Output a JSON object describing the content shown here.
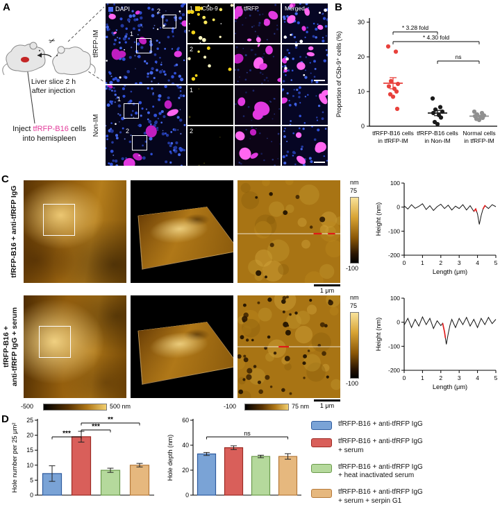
{
  "panels": {
    "a": "A",
    "b": "B",
    "c": "C",
    "d": "D"
  },
  "panel_a": {
    "cartoon": {
      "caption_line1": "Liver slice 2 h",
      "caption_line2": "after injection",
      "inject_prefix": "Inject ",
      "inject_highlight": "tfRFP-B16",
      "inject_mid": " cells",
      "inject_line2": "into hemispleen"
    },
    "microscopy": {
      "row_label_1": "tfRFP-IM",
      "row_label_2": "Non-IM",
      "dapi": "DAPI",
      "c5b9": "C5b-9",
      "tfrfp": "tfRFP",
      "merged": "Merged",
      "inset_1": "1",
      "inset_2": "2"
    }
  },
  "panel_c": {
    "row_label_1_lines": [
      "tfRFP-B16 + anti-tfRFP IgG"
    ],
    "row_label_2_lines": [
      "tfRFP-B16 +",
      "anti-tfRFP IgG + serum"
    ],
    "vbar_unit": "nm",
    "vbar_max": "75",
    "vbar_min": "-100",
    "scalebar_label": "1 μm",
    "hbar1_min": "-500",
    "hbar1_max": "500 nm",
    "hbar2_min": "-100",
    "hbar2_max": "75 nm"
  },
  "panel_d": {
    "legend": [
      {
        "lines": [
          "tfRFP-B16 + anti-tfRFP IgG"
        ],
        "fill": "#7AA3D6",
        "stroke": "#2E5B9E"
      },
      {
        "lines": [
          "tfRFP-B16 + anti-tfRFP IgG",
          "+ serum"
        ],
        "fill": "#D95F5A",
        "stroke": "#9C2A23"
      },
      {
        "lines": [
          "tfRFP-B16 + anti-tfRFP IgG",
          "+ heat inactivated serum"
        ],
        "fill": "#B5D99C",
        "stroke": "#6A9A4A"
      },
      {
        "lines": [
          "tfRFP-B16 + anti-tfRFP IgG",
          "+ serum + serpin G1"
        ],
        "fill": "#E6B87E",
        "stroke": "#B5793A"
      }
    ]
  },
  "palette": {
    "bar_fills": [
      "#7AA3D6",
      "#D95F5A",
      "#B5D99C",
      "#E6B87E"
    ],
    "bar_strokes": [
      "#2E5B9E",
      "#9C2A23",
      "#6A9A4A",
      "#B5793A"
    ],
    "dapi_blue": "#4a6cf4",
    "c5b9_yellow": "#f0d018",
    "tfrfp_magenta": "#e341d6",
    "highlight_magenta": "#e23a9a"
  },
  "chart_data": [
    {
      "id": "c5b9_dotplot",
      "type": "scatter",
      "ylabel": "Proportion of C5b-9⁺ cells (%)",
      "ylim": [
        0,
        30
      ],
      "yticks": [
        0,
        10,
        20,
        30
      ],
      "groups": [
        {
          "label_lines": [
            "tfRFP-B16 cells",
            "in tfRFP-IM"
          ],
          "color": "#e8413c",
          "values": [
            23,
            21.5,
            13,
            12.2,
            11.5,
            10.8,
            10,
            9.2,
            8.5,
            5
          ],
          "mean": 12.4,
          "sem": 1.6
        },
        {
          "label_lines": [
            "tfRFP-B16 cells",
            "in Non-IM"
          ],
          "color": "#1a1a1a",
          "values": [
            8,
            5.5,
            4.8,
            4.2,
            3.8,
            3.2,
            2.5,
            1.2,
            0.6
          ],
          "mean": 3.8,
          "sem": 0.75
        },
        {
          "label_lines": [
            "Normal cells",
            "in tfRFP-IM"
          ],
          "color": "#909090",
          "values": [
            4.2,
            3.8,
            3.4,
            3.1,
            2.9,
            2.7,
            2.4,
            2.1,
            1.8
          ],
          "mean": 2.9,
          "sem": 0.27
        }
      ],
      "comparisons": [
        {
          "from": 0,
          "to": 1,
          "label": "* 3.28 fold"
        },
        {
          "from": 0,
          "to": 2,
          "label": "* 4.30 fold"
        },
        {
          "from": 1,
          "to": 2,
          "label": "ns"
        }
      ]
    },
    {
      "id": "profile_igg",
      "type": "line",
      "xlabel": "Length (μm)",
      "ylabel": "Height (nm)",
      "xlim": [
        0,
        5
      ],
      "ylim": [
        -200,
        100
      ],
      "xticks": [
        0,
        1,
        2,
        3,
        4,
        5
      ],
      "yticks": [
        100,
        0,
        -100,
        -200
      ],
      "x": [
        0,
        0.2,
        0.4,
        0.6,
        0.8,
        1.0,
        1.2,
        1.4,
        1.6,
        1.8,
        2.0,
        2.2,
        2.4,
        2.6,
        2.8,
        3.0,
        3.2,
        3.4,
        3.6,
        3.8,
        3.9,
        4.0,
        4.1,
        4.2,
        4.3,
        4.4,
        4.6,
        4.8,
        5.0
      ],
      "y": [
        5,
        -8,
        10,
        -5,
        3,
        14,
        -10,
        6,
        -14,
        2,
        12,
        -6,
        8,
        -12,
        4,
        -6,
        10,
        -12,
        6,
        -18,
        -8,
        -28,
        -72,
        -35,
        -8,
        6,
        -6,
        10,
        2
      ],
      "red_x_ranges": [
        [
          3.8,
          3.95
        ],
        [
          4.3,
          4.45
        ]
      ]
    },
    {
      "id": "profile_serum",
      "type": "line",
      "xlabel": "Length (μm)",
      "ylabel": "Height (nm)",
      "xlim": [
        0,
        5
      ],
      "ylim": [
        -200,
        100
      ],
      "xticks": [
        0,
        1,
        2,
        3,
        4,
        5
      ],
      "yticks": [
        100,
        0,
        -100,
        -200
      ],
      "x": [
        0,
        0.2,
        0.4,
        0.6,
        0.8,
        1.0,
        1.2,
        1.4,
        1.6,
        1.8,
        2.0,
        2.1,
        2.2,
        2.3,
        2.4,
        2.5,
        2.6,
        2.8,
        3.0,
        3.2,
        3.4,
        3.6,
        3.8,
        4.0,
        4.2,
        4.4,
        4.6,
        4.8,
        5.0
      ],
      "y": [
        -12,
        16,
        -22,
        12,
        -16,
        22,
        -10,
        16,
        -26,
        6,
        -14,
        -4,
        -40,
        -92,
        -48,
        -12,
        12,
        -22,
        16,
        -10,
        20,
        -16,
        12,
        -22,
        16,
        -10,
        20,
        -6,
        12
      ],
      "red_x_ranges": [
        [
          2.1,
          2.25
        ]
      ]
    },
    {
      "id": "hole_number",
      "type": "bar",
      "ylabel": "Hole number per 25 μm²",
      "ylim": [
        0,
        25
      ],
      "yticks": [
        0,
        5,
        10,
        15,
        20,
        25
      ],
      "values": [
        7.2,
        19.5,
        8.3,
        10.0
      ],
      "errors": [
        2.6,
        1.8,
        0.7,
        0.6
      ],
      "comparisons": [
        {
          "from": 0,
          "to": 1,
          "label": "***"
        },
        {
          "from": 1,
          "to": 2,
          "label": "***"
        },
        {
          "from": 1,
          "to": 3,
          "label": "**"
        }
      ]
    },
    {
      "id": "hole_depth",
      "type": "bar",
      "ylabel": "Hole depth (nm)",
      "ylim": [
        0,
        60
      ],
      "yticks": [
        0,
        20,
        40,
        60
      ],
      "values": [
        33,
        38,
        31,
        31
      ],
      "errors": [
        1.2,
        1.5,
        1.0,
        2.2
      ],
      "comparisons": [
        {
          "from": 0,
          "to": 3,
          "label": "ns"
        }
      ]
    }
  ]
}
